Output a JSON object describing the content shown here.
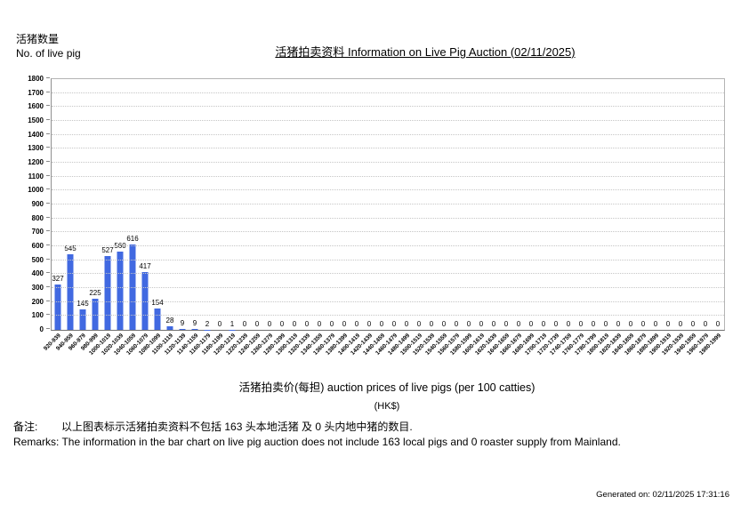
{
  "page": {
    "y_axis_label_zh": "活猪数量",
    "y_axis_label_en": "No. of live pig",
    "title": "活猪拍卖资料 Information on Live Pig Auction (02/11/2025)",
    "x_axis_title": "活猪拍卖价(每担) auction prices of live pigs (per 100 catties)",
    "x_axis_unit": "(HK$)",
    "remarks_zh": "备注:        以上图表标示活猪拍卖资料不包括 163 头本地活猪 及 0 头内地中猪的数目.",
    "remarks_en": "Remarks: The information in the bar chart on live pig auction does not include 163 local pigs and 0 roaster supply from Mainland.",
    "generated_on": "Generated on: 02/11/2025 17:31:16"
  },
  "chart_data": {
    "type": "bar",
    "title": "活猪拍卖资料 Information on Live Pig Auction (02/11/2025)",
    "xlabel": "活猪拍卖价(每担) auction prices of live pigs (per 100 catties) (HK$)",
    "ylabel": "活猪数量 No. of live pig",
    "ylim": [
      0,
      1800
    ],
    "y_tick_step": 100,
    "grid": true,
    "legend": "none",
    "bar_color": "#4169E1",
    "categories": [
      "920-939",
      "940-959",
      "960-979",
      "980-999",
      "1000-1019",
      "1020-1039",
      "1040-1059",
      "1060-1079",
      "1080-1099",
      "1100-1119",
      "1120-1139",
      "1140-1159",
      "1160-1179",
      "1180-1199",
      "1200-1219",
      "1220-1239",
      "1240-1259",
      "1260-1279",
      "1280-1299",
      "1300-1319",
      "1320-1339",
      "1340-1359",
      "1360-1379",
      "1380-1399",
      "1400-1419",
      "1420-1439",
      "1440-1459",
      "1460-1479",
      "1480-1499",
      "1500-1519",
      "1520-1539",
      "1540-1559",
      "1560-1579",
      "1580-1599",
      "1600-1619",
      "1620-1639",
      "1640-1659",
      "1660-1679",
      "1680-1699",
      "1700-1719",
      "1720-1739",
      "1740-1759",
      "1760-1779",
      "1780-1799",
      "1800-1819",
      "1820-1839",
      "1840-1859",
      "1860-1879",
      "1880-1899",
      "1900-1919",
      "1920-1939",
      "1940-1959",
      "1960-1979",
      "1980-1999"
    ],
    "values": [
      327,
      545,
      145,
      225,
      527,
      560,
      616,
      417,
      154,
      28,
      9,
      9,
      2,
      0,
      1,
      0,
      0,
      0,
      0,
      0,
      0,
      0,
      0,
      0,
      0,
      0,
      0,
      0,
      0,
      0,
      0,
      0,
      0,
      0,
      0,
      0,
      0,
      0,
      0,
      0,
      0,
      0,
      0,
      0,
      0,
      0,
      0,
      0,
      0,
      0,
      0,
      0,
      0,
      0
    ]
  }
}
